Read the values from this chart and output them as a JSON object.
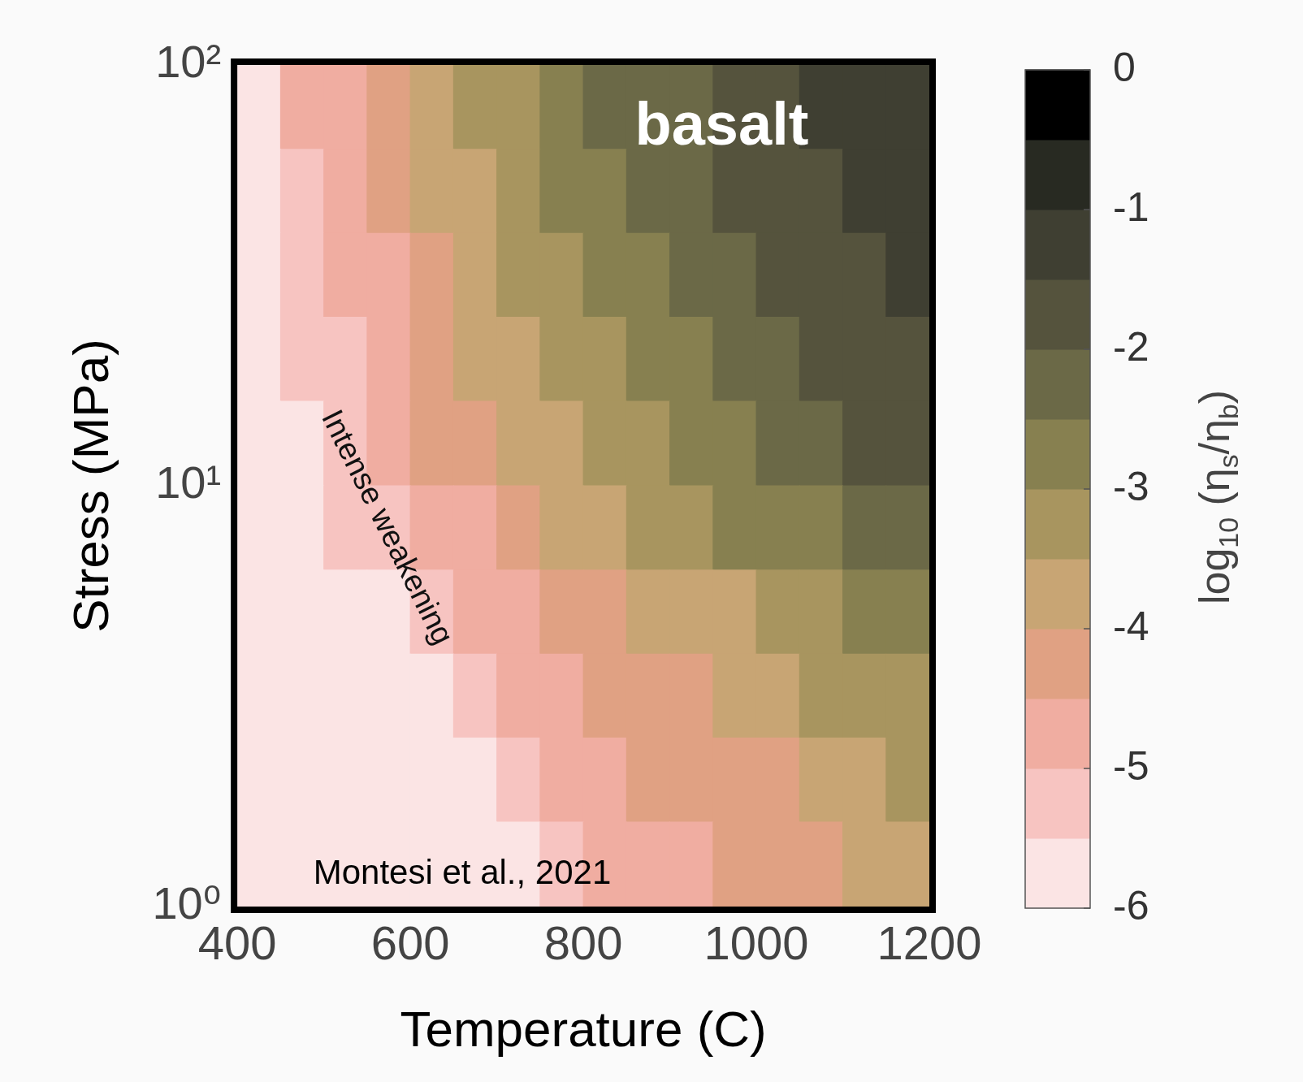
{
  "chart_data": {
    "type": "heatmap",
    "xlabel": "Temperature (C)",
    "ylabel": "Stress (MPa)",
    "clabel": "log$_{10}$ (η$_{s}$/η$_{b}$)",
    "annotations": [
      "basalt",
      "Intense weakening",
      "Montesi et al., 2021"
    ],
    "x": [
      425,
      475,
      525,
      575,
      625,
      675,
      725,
      775,
      825,
      875,
      925,
      975,
      1025,
      1075,
      1125,
      1175
    ],
    "y": [
      79.4,
      50.1,
      31.6,
      20,
      12.6,
      7.94,
      5.01,
      3.16,
      2,
      1.26
    ],
    "xlim": [
      400,
      1200
    ],
    "xticks": [
      400,
      600,
      800,
      1000,
      1200
    ],
    "ylim": [
      1,
      100
    ],
    "yticks": [
      {
        "value": 1,
        "label": "10⁰"
      },
      {
        "value": 10,
        "label": "10¹"
      },
      {
        "value": 100,
        "label": "10²"
      }
    ],
    "log": "y",
    "grid": false,
    "clim": [
      -6,
      0
    ],
    "cticks": [
      0,
      -1,
      -2,
      -3,
      -4,
      -5,
      -6
    ],
    "colors": [
      "#fbe4e4",
      "#f7c4c1",
      "#f0ada1",
      "#e0a183",
      "#c8a574",
      "#a8955f",
      "#878050",
      "#6b6947",
      "#55533d",
      "#3f3f32",
      "#282a22",
      "#000000"
    ],
    "cells": [
      [
        -5.75,
        -4.75,
        -4.75,
        -4.25,
        -3.75,
        -3.25,
        -3.25,
        -2.75,
        -2.25,
        -2.25,
        -2.25,
        -1.75,
        -1.75,
        -1.25,
        -1.25,
        -1.25
      ],
      [
        -5.75,
        -5.25,
        -4.75,
        -4.25,
        -3.75,
        -3.75,
        -3.25,
        -2.75,
        -2.75,
        -2.25,
        -2.25,
        -1.75,
        -1.75,
        -1.75,
        -1.25,
        -1.25
      ],
      [
        -5.75,
        -5.25,
        -4.75,
        -4.75,
        -4.25,
        -3.75,
        -3.25,
        -3.25,
        -2.75,
        -2.75,
        -2.25,
        -2.25,
        -1.75,
        -1.75,
        -1.75,
        -1.25
      ],
      [
        -5.75,
        -5.25,
        -5.25,
        -4.75,
        -4.25,
        -3.75,
        -3.75,
        -3.25,
        -3.25,
        -2.75,
        -2.75,
        -2.25,
        -2.25,
        -1.75,
        -1.75,
        -1.75
      ],
      [
        -5.75,
        -5.75,
        -5.25,
        -4.75,
        -4.25,
        -4.25,
        -3.75,
        -3.75,
        -3.25,
        -3.25,
        -2.75,
        -2.75,
        -2.25,
        -2.25,
        -1.75,
        -1.75
      ],
      [
        -5.75,
        -5.75,
        -5.25,
        -5.25,
        -4.75,
        -4.75,
        -4.25,
        -3.75,
        -3.75,
        -3.25,
        -3.25,
        -2.75,
        -2.75,
        -2.75,
        -2.25,
        -2.25
      ],
      [
        -5.75,
        -5.75,
        -5.75,
        -5.75,
        -5.25,
        -4.75,
        -4.75,
        -4.25,
        -4.25,
        -3.75,
        -3.75,
        -3.75,
        -3.25,
        -3.25,
        -2.75,
        -2.75
      ],
      [
        -5.75,
        -5.75,
        -5.75,
        -5.75,
        -5.75,
        -5.25,
        -4.75,
        -4.75,
        -4.25,
        -4.25,
        -4.25,
        -3.75,
        -3.75,
        -3.25,
        -3.25,
        -3.25
      ],
      [
        -5.75,
        -5.75,
        -5.75,
        -5.75,
        -5.75,
        -5.75,
        -5.25,
        -4.75,
        -4.75,
        -4.25,
        -4.25,
        -4.25,
        -4.25,
        -3.75,
        -3.75,
        -3.25
      ],
      [
        -5.75,
        -5.75,
        -5.75,
        -5.75,
        -5.75,
        -5.75,
        -5.75,
        -5.25,
        -4.75,
        -4.75,
        -4.75,
        -4.25,
        -4.25,
        -4.25,
        -3.75,
        -3.75
      ]
    ]
  }
}
